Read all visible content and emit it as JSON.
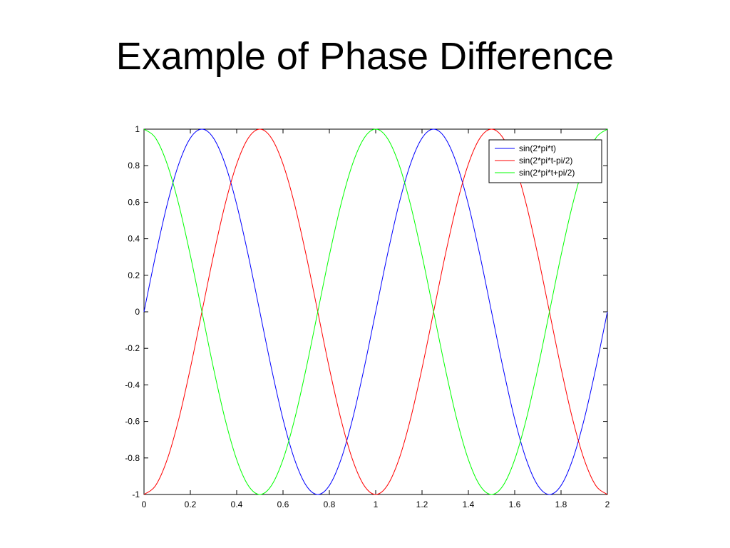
{
  "slide": {
    "title": "Example of Phase Difference"
  },
  "chart_data": {
    "type": "line",
    "title": "",
    "xlabel": "",
    "ylabel": "",
    "xlim": [
      0,
      2
    ],
    "ylim": [
      -1,
      1
    ],
    "x_ticks": [
      0,
      0.2,
      0.4,
      0.6,
      0.8,
      1,
      1.2,
      1.4,
      1.6,
      1.8,
      2
    ],
    "x_tick_labels": [
      "0",
      "0.2",
      "0.4",
      "0.6",
      "0.8",
      "1",
      "1.2",
      "1.4",
      "1.6",
      "1.8",
      "2"
    ],
    "y_ticks": [
      -1,
      -0.8,
      -0.6,
      -0.4,
      -0.2,
      0,
      0.2,
      0.4,
      0.6,
      0.8,
      1
    ],
    "y_tick_labels": [
      "-1",
      "-0.8",
      "-0.6",
      "-0.4",
      "-0.2",
      "0",
      "0.2",
      "0.4",
      "0.6",
      "0.8",
      "1"
    ],
    "grid": false,
    "legend_position": "top-right",
    "x": [
      0,
      0.05,
      0.1,
      0.15,
      0.2,
      0.25,
      0.3,
      0.35,
      0.4,
      0.45,
      0.5,
      0.55,
      0.6,
      0.65,
      0.7,
      0.75,
      0.8,
      0.85,
      0.9,
      0.95,
      1,
      1.05,
      1.1,
      1.15,
      1.2,
      1.25,
      1.3,
      1.35,
      1.4,
      1.45,
      1.5,
      1.55,
      1.6,
      1.65,
      1.7,
      1.75,
      1.8,
      1.85,
      1.9,
      1.95,
      2
    ],
    "series": [
      {
        "name": "sin(2*pi*t)",
        "color": "#0000ff",
        "values": [
          0,
          0.309,
          0.588,
          0.809,
          0.951,
          1,
          0.951,
          0.809,
          0.588,
          0.309,
          0,
          -0.309,
          -0.588,
          -0.809,
          -0.951,
          -1,
          -0.951,
          -0.809,
          -0.588,
          -0.309,
          0,
          0.309,
          0.588,
          0.809,
          0.951,
          1,
          0.951,
          0.809,
          0.588,
          0.309,
          0,
          -0.309,
          -0.588,
          -0.809,
          -0.951,
          -1,
          -0.951,
          -0.809,
          -0.588,
          -0.309,
          0
        ]
      },
      {
        "name": "sin(2*pi*t-pi/2)",
        "color": "#ff0000",
        "values": [
          -1,
          -0.951,
          -0.809,
          -0.588,
          -0.309,
          0,
          0.309,
          0.588,
          0.809,
          0.951,
          1,
          0.951,
          0.809,
          0.588,
          0.309,
          0,
          -0.309,
          -0.588,
          -0.809,
          -0.951,
          -1,
          -0.951,
          -0.809,
          -0.588,
          -0.309,
          0,
          0.309,
          0.588,
          0.809,
          0.951,
          1,
          0.951,
          0.809,
          0.588,
          0.309,
          0,
          -0.309,
          -0.588,
          -0.809,
          -0.951,
          -1
        ]
      },
      {
        "name": "sin(2*pi*t+pi/2)",
        "color": "#00ff00",
        "values": [
          1,
          0.951,
          0.809,
          0.588,
          0.309,
          0,
          -0.309,
          -0.588,
          -0.809,
          -0.951,
          -1,
          -0.951,
          -0.809,
          -0.588,
          -0.309,
          0,
          0.309,
          0.588,
          0.809,
          0.951,
          1,
          0.951,
          0.809,
          0.588,
          0.309,
          0,
          -0.309,
          -0.588,
          -0.809,
          -0.951,
          -1,
          -0.951,
          -0.809,
          -0.588,
          -0.309,
          0,
          0.309,
          0.588,
          0.809,
          0.951,
          1
        ]
      }
    ]
  }
}
